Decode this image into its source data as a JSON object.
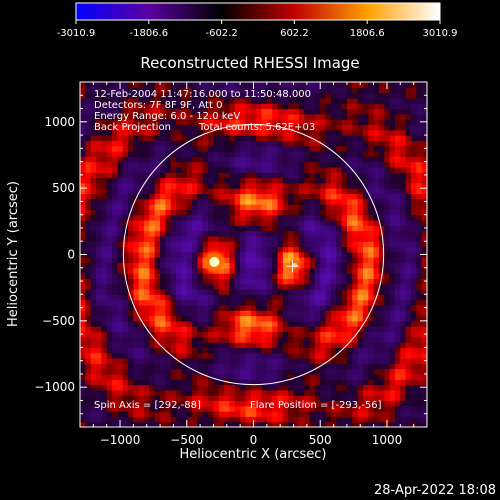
{
  "colorbar": {
    "ticks": [
      "-3010.9",
      "-1806.6",
      "-602.2",
      "602.2",
      "1806.6",
      "3010.9"
    ],
    "range": [
      -3010.9,
      3010.9
    ],
    "colors": [
      "#0000ff",
      "#5a00a0",
      "#000000",
      "#c00000",
      "#ffa000",
      "#ffffff"
    ]
  },
  "chart_data": {
    "type": "heatmap",
    "title": "Reconstructed RHESSI Image",
    "xlabel": "Heliocentric X (arcsec)",
    "ylabel": "Heliocentric Y (arcsec)",
    "xlim": [
      -1300,
      1300
    ],
    "ylim": [
      -1300,
      1300
    ],
    "xticks": [
      -1000,
      -500,
      0,
      500,
      1000
    ],
    "yticks": [
      -1000,
      -500,
      0,
      500,
      1000
    ],
    "xtick_labels": [
      "−1000",
      "−500",
      "0",
      "500",
      "1000"
    ],
    "ytick_labels": [
      "−1000",
      "−500",
      "0",
      "500",
      "1000"
    ],
    "annotations": {
      "line1": "12-Feb-2004 11:47:16.000 to 11:50:48.000",
      "line2": "Detectors: 7F 8F 9F, Att 0",
      "line3": "Energy Range: 6.0 - 12.0 keV",
      "line4a": "Back Projection",
      "line4b": "Total counts: 5.62E+03",
      "spin_axis": "Spin Axis = [292,-88]",
      "flare_position": "Flare Position = [-293,-56]"
    },
    "solar_limb_radius_arcsec": 975,
    "sources": [
      {
        "x": -293,
        "y": -56,
        "peak": 3010.9
      },
      {
        "x": 310,
        "y": -80,
        "peak": 2000
      }
    ],
    "spin_axis_marker": {
      "x": 292,
      "y": -88
    }
  },
  "footer": {
    "date": "28-Apr-2022 18:08"
  }
}
